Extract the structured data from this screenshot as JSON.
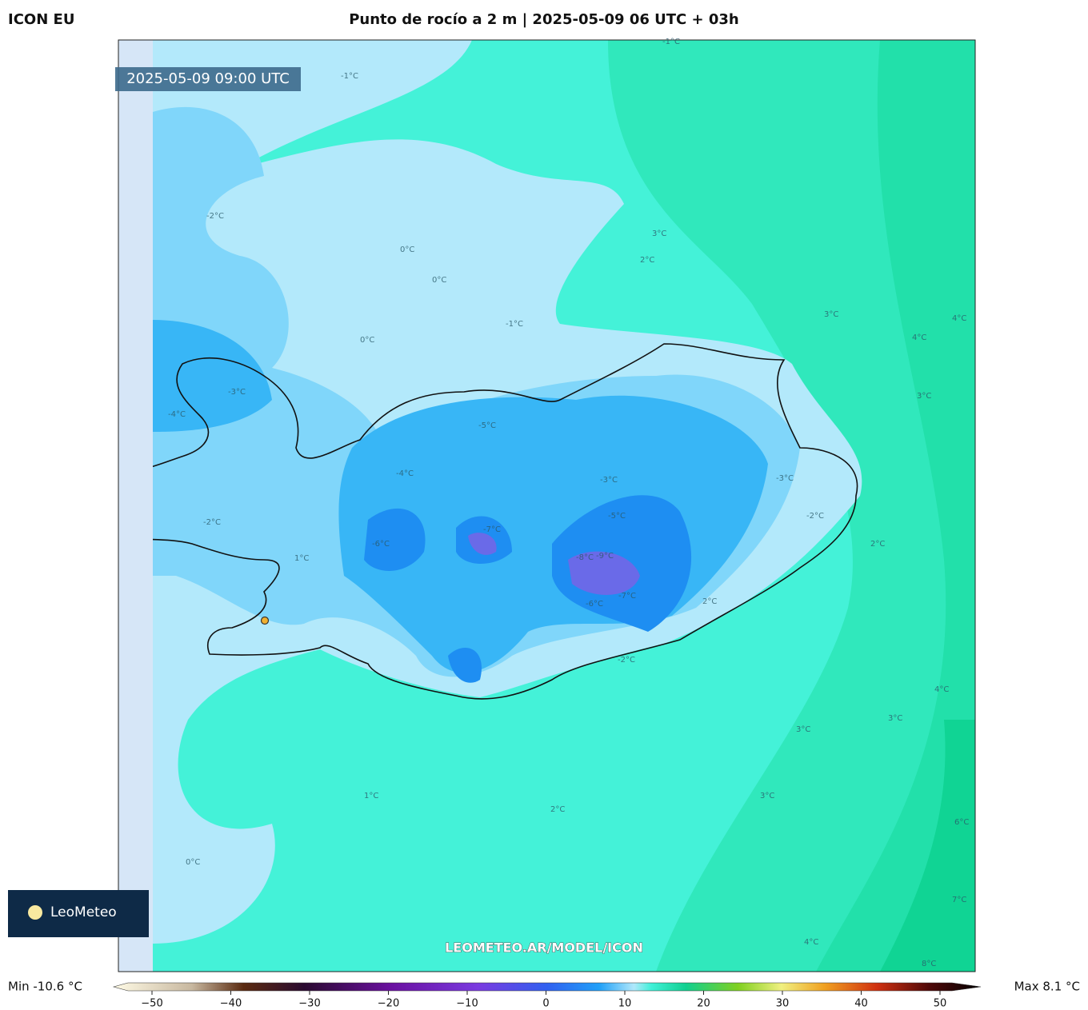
{
  "header": {
    "model": "ICON EU",
    "title": "Punto de rocío a 2 m | 2025-05-09 06 UTC + 03h"
  },
  "map": {
    "timestamp": "2025-05-09 09:00 UTC",
    "watermark": "LEOMETEO.AR/MODEL/ICON",
    "logo": "LeoMeteo",
    "contour_labels": [
      "-1°C",
      "-2°C",
      "-1°C",
      "0°C",
      "0°C",
      "0°C",
      "-3°C",
      "-4°C",
      "-5°C",
      "-3°C",
      "-4°C",
      "-6°C",
      "-7°C",
      "-8°C",
      "-9°C",
      "-7°C",
      "-6°C",
      "-5°C",
      "-3°C",
      "-2°C",
      "-2°C",
      "1°C",
      "2°C",
      "3°C",
      "3°C",
      "4°C",
      "4°C",
      "3°C",
      "2°C",
      "3°C",
      "3°C",
      "2°C",
      "1°C",
      "0°C",
      "4°C",
      "3°C",
      "4°C",
      "6°C",
      "7°C",
      "8°C",
      "2°C",
      "-2°C",
      "-1°C"
    ]
  },
  "colorbar": {
    "min_label": "Min -10.6 °C",
    "max_label": "Max 8.1 °C",
    "ticks": [
      {
        "value": -50,
        "label": "−50"
      },
      {
        "value": -40,
        "label": "−40"
      },
      {
        "value": -30,
        "label": "−30"
      },
      {
        "value": -20,
        "label": "−20"
      },
      {
        "value": -10,
        "label": "−10"
      },
      0,
      10,
      20,
      30,
      40,
      50
    ]
  }
}
